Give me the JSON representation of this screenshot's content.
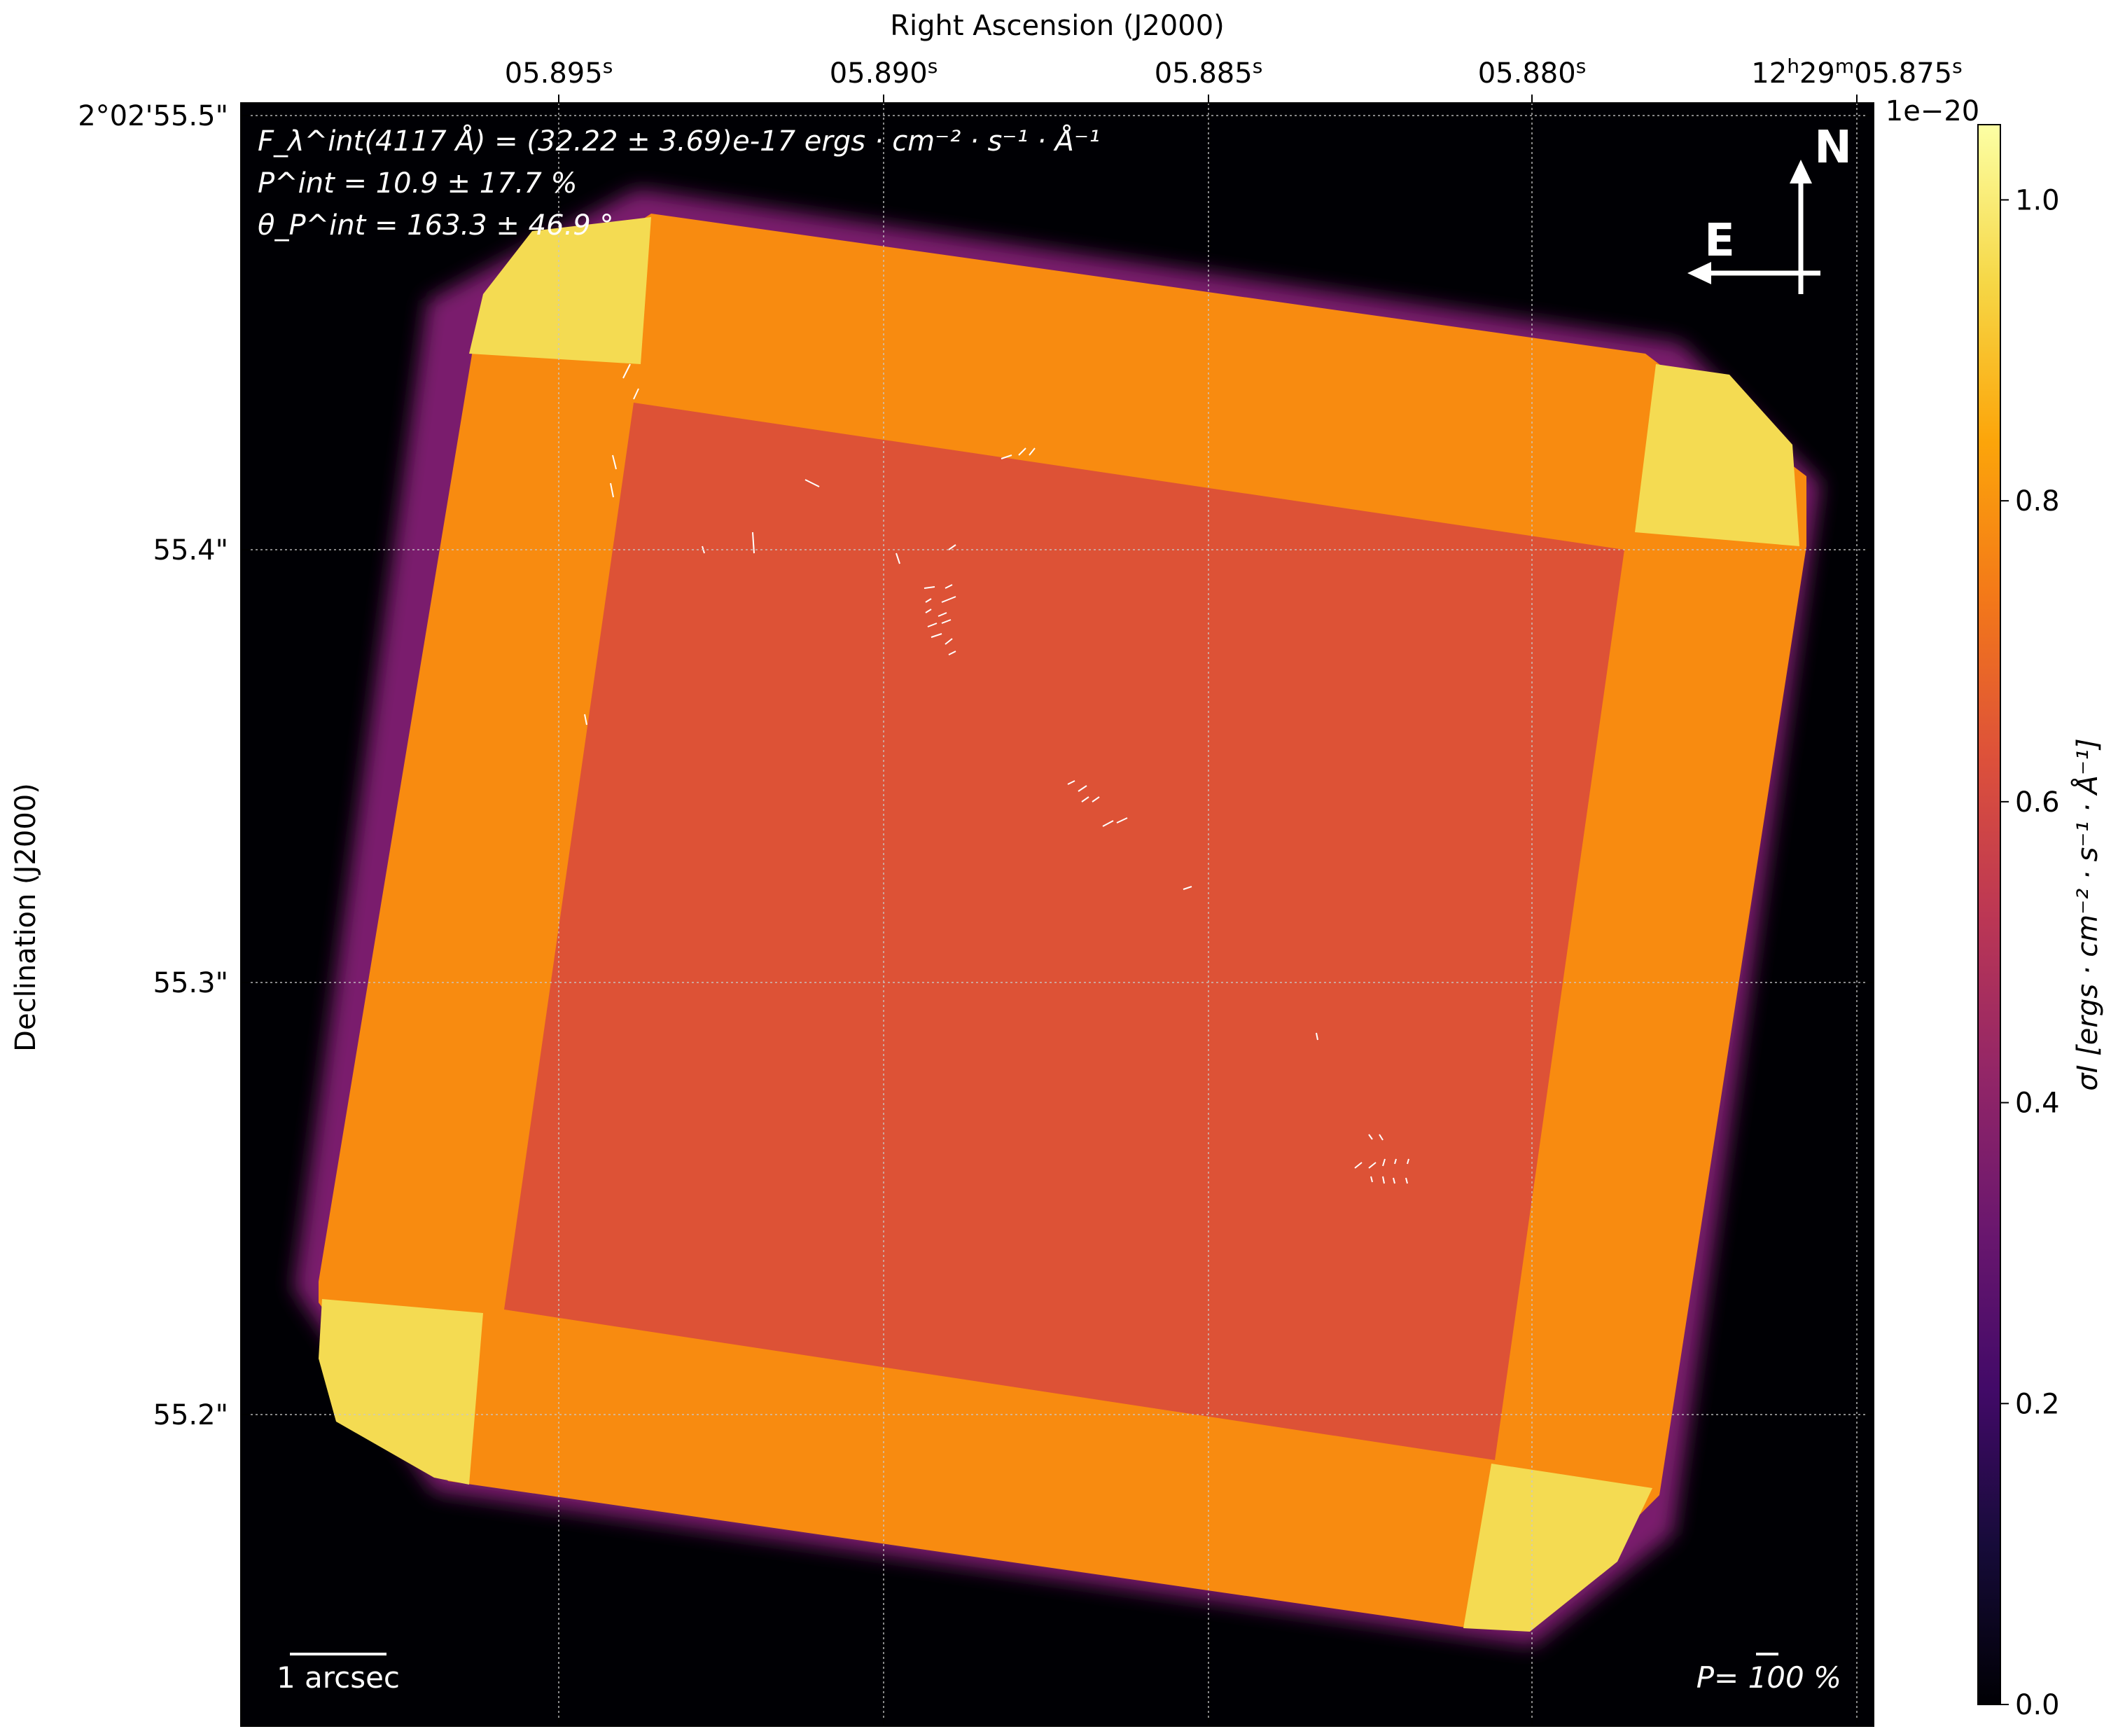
{
  "chart_data": {
    "type": "heatmap",
    "xlabel": "Right Ascension (J2000)",
    "ylabel": "Declination (J2000)",
    "x_ticks": [
      {
        "main": "05.895",
        "sup": "s"
      },
      {
        "main": "05.890",
        "sup": "s"
      },
      {
        "main": "05.885",
        "sup": "s"
      },
      {
        "main": "05.880",
        "sup": "s"
      },
      {
        "main": "12",
        "sup": "h",
        "main2": "29",
        "sup2": "m",
        "main3": "05.875",
        "sup3": "s"
      }
    ],
    "y_ticks": [
      "2°02'55.5\"",
      "55.4\"",
      "55.3\"",
      "55.2\""
    ],
    "grid": true,
    "colorbar": {
      "label": "σI [ergs · cm⁻² · s⁻¹ · Å⁻¹]",
      "offset": "1e−20",
      "ticks": [
        "0.0",
        "0.2",
        "0.4",
        "0.6",
        "0.8",
        "1.0"
      ],
      "range": [
        0.0,
        1.05
      ],
      "colormap": "inferno"
    },
    "map_levels": {
      "background": 0.0,
      "inner_square": 0.68,
      "overlap_bands": 0.82,
      "corners": 0.96
    },
    "annotations": {
      "flux_line": "F_λ^int(4117 Å) = (32.22 ± 3.69)e-17 ergs · cm⁻² · s⁻¹ · Å⁻¹",
      "pol_line": "P^int = 10.9 ± 17.7 %",
      "angle_line": "θ_P^int = 163.3 ± 46.9 °",
      "scale_bar": "1 arcsec",
      "pol_scale": "P= 100 %",
      "compass_north": "N",
      "compass_east": "E"
    }
  }
}
